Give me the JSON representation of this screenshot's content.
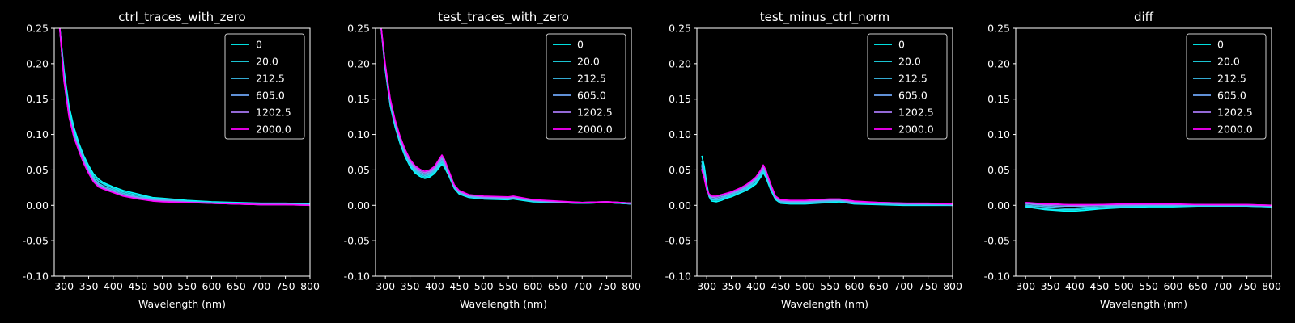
{
  "figure": {
    "background": "#000000",
    "foreground": "#ffffff"
  },
  "legend": {
    "entries": [
      "0",
      "20.0",
      "212.5",
      "605.0",
      "1202.5",
      "2000.0"
    ],
    "colors": [
      "#00ffff",
      "#1ee1f0",
      "#3cc3f0",
      "#6ea5f5",
      "#a878f5",
      "#ff00ff"
    ],
    "placement": "top-right"
  },
  "axes": {
    "xlabel": "Wavelength (nm)",
    "xlim": [
      280,
      800
    ],
    "ylim": [
      -0.1,
      0.25
    ],
    "xticks": [
      "300",
      "350",
      "400",
      "450",
      "500",
      "550",
      "600",
      "650",
      "700",
      "750",
      "800"
    ],
    "yticks": [
      "-0.10",
      "-0.05",
      "0.00",
      "0.05",
      "0.10",
      "0.15",
      "0.20",
      "0.25"
    ]
  },
  "chart_data": [
    {
      "type": "line",
      "title": "ctrl_traces_with_zero",
      "xlabel": "Wavelength (nm)",
      "xlim": [
        280,
        800
      ],
      "ylim": [
        -0.1,
        0.25
      ],
      "legend": "top-right",
      "x": [
        290,
        300,
        310,
        320,
        330,
        340,
        350,
        360,
        370,
        380,
        400,
        420,
        450,
        480,
        500,
        550,
        600,
        650,
        700,
        750,
        800
      ],
      "series": [
        {
          "name": "0",
          "values": [
            0.26,
            0.19,
            0.14,
            0.11,
            0.088,
            0.07,
            0.056,
            0.044,
            0.037,
            0.032,
            0.026,
            0.021,
            0.016,
            0.011,
            0.01,
            0.007,
            0.005,
            0.004,
            0.003,
            0.003,
            0.002
          ]
        },
        {
          "name": "20.0",
          "values": [
            0.26,
            0.185,
            0.135,
            0.105,
            0.085,
            0.067,
            0.053,
            0.041,
            0.034,
            0.03,
            0.024,
            0.019,
            0.014,
            0.01,
            0.009,
            0.006,
            0.004,
            0.003,
            0.002,
            0.002,
            0.001
          ]
        },
        {
          "name": "212.5",
          "values": [
            0.26,
            0.18,
            0.13,
            0.1,
            0.082,
            0.064,
            0.05,
            0.038,
            0.031,
            0.027,
            0.022,
            0.017,
            0.012,
            0.009,
            0.008,
            0.005,
            0.004,
            0.003,
            0.002,
            0.002,
            0.001
          ]
        },
        {
          "name": "605.0",
          "values": [
            0.26,
            0.178,
            0.128,
            0.098,
            0.08,
            0.062,
            0.048,
            0.036,
            0.029,
            0.025,
            0.02,
            0.015,
            0.011,
            0.008,
            0.007,
            0.005,
            0.003,
            0.002,
            0.001,
            0.001,
            0.001
          ]
        },
        {
          "name": "1202.5",
          "values": [
            0.26,
            0.176,
            0.126,
            0.097,
            0.078,
            0.06,
            0.046,
            0.034,
            0.027,
            0.024,
            0.019,
            0.014,
            0.01,
            0.007,
            0.006,
            0.004,
            0.003,
            0.002,
            0.001,
            0.001,
            0.0
          ]
        },
        {
          "name": "2000.0",
          "values": [
            0.26,
            0.175,
            0.125,
            0.096,
            0.077,
            0.059,
            0.045,
            0.033,
            0.026,
            0.023,
            0.018,
            0.013,
            0.009,
            0.006,
            0.005,
            0.004,
            0.003,
            0.002,
            0.001,
            0.001,
            0.0
          ]
        }
      ]
    },
    {
      "type": "line",
      "title": "test_traces_with_zero",
      "xlabel": "Wavelength (nm)",
      "xlim": [
        280,
        800
      ],
      "ylim": [
        -0.1,
        0.25
      ],
      "legend": "top-right",
      "x": [
        290,
        300,
        310,
        320,
        330,
        340,
        350,
        360,
        370,
        380,
        390,
        400,
        410,
        415,
        420,
        430,
        440,
        450,
        470,
        500,
        550,
        560,
        600,
        650,
        700,
        750,
        800
      ],
      "series": [
        {
          "name": "0",
          "values": [
            0.26,
            0.19,
            0.14,
            0.11,
            0.087,
            0.069,
            0.055,
            0.046,
            0.041,
            0.038,
            0.04,
            0.045,
            0.054,
            0.058,
            0.054,
            0.04,
            0.024,
            0.016,
            0.011,
            0.009,
            0.008,
            0.009,
            0.005,
            0.004,
            0.003,
            0.004,
            0.002
          ]
        },
        {
          "name": "20.0",
          "values": [
            0.26,
            0.19,
            0.142,
            0.112,
            0.089,
            0.071,
            0.057,
            0.048,
            0.043,
            0.04,
            0.042,
            0.047,
            0.056,
            0.061,
            0.056,
            0.041,
            0.025,
            0.017,
            0.012,
            0.01,
            0.009,
            0.01,
            0.006,
            0.004,
            0.003,
            0.004,
            0.002
          ]
        },
        {
          "name": "212.5",
          "values": [
            0.26,
            0.192,
            0.144,
            0.114,
            0.091,
            0.073,
            0.059,
            0.05,
            0.045,
            0.042,
            0.044,
            0.049,
            0.058,
            0.063,
            0.058,
            0.043,
            0.026,
            0.018,
            0.012,
            0.01,
            0.009,
            0.01,
            0.006,
            0.004,
            0.003,
            0.004,
            0.002
          ]
        },
        {
          "name": "605.0",
          "values": [
            0.26,
            0.194,
            0.146,
            0.116,
            0.093,
            0.075,
            0.061,
            0.052,
            0.047,
            0.044,
            0.046,
            0.051,
            0.061,
            0.066,
            0.06,
            0.044,
            0.027,
            0.019,
            0.013,
            0.011,
            0.01,
            0.011,
            0.007,
            0.005,
            0.004,
            0.005,
            0.003
          ]
        },
        {
          "name": "1202.5",
          "values": [
            0.26,
            0.196,
            0.148,
            0.118,
            0.095,
            0.077,
            0.063,
            0.054,
            0.049,
            0.046,
            0.048,
            0.053,
            0.064,
            0.069,
            0.063,
            0.046,
            0.028,
            0.02,
            0.014,
            0.012,
            0.011,
            0.012,
            0.007,
            0.005,
            0.004,
            0.005,
            0.003
          ]
        },
        {
          "name": "2000.0",
          "values": [
            0.26,
            0.198,
            0.15,
            0.12,
            0.097,
            0.079,
            0.065,
            0.056,
            0.051,
            0.048,
            0.05,
            0.055,
            0.066,
            0.071,
            0.065,
            0.047,
            0.029,
            0.021,
            0.015,
            0.013,
            0.012,
            0.013,
            0.008,
            0.006,
            0.004,
            0.005,
            0.003
          ]
        }
      ]
    },
    {
      "type": "line",
      "title": "test_minus_ctrl_norm",
      "xlabel": "Wavelength (nm)",
      "xlim": [
        280,
        800
      ],
      "ylim": [
        -0.1,
        0.25
      ],
      "legend": "top-right",
      "x": [
        290,
        295,
        300,
        305,
        310,
        320,
        330,
        340,
        350,
        360,
        370,
        380,
        390,
        400,
        410,
        415,
        420,
        430,
        440,
        450,
        470,
        500,
        550,
        570,
        600,
        650,
        700,
        750,
        800
      ],
      "series": [
        {
          "name": "0",
          "values": [
            0.07,
            0.055,
            0.03,
            0.012,
            0.006,
            0.005,
            0.007,
            0.01,
            0.012,
            0.015,
            0.018,
            0.021,
            0.025,
            0.03,
            0.04,
            0.046,
            0.04,
            0.022,
            0.008,
            0.003,
            0.002,
            0.002,
            0.004,
            0.005,
            0.002,
            0.001,
            0.0,
            0.0,
            0.0
          ]
        },
        {
          "name": "20.0",
          "values": [
            0.062,
            0.048,
            0.026,
            0.012,
            0.008,
            0.007,
            0.009,
            0.011,
            0.014,
            0.016,
            0.019,
            0.022,
            0.027,
            0.032,
            0.042,
            0.048,
            0.042,
            0.024,
            0.009,
            0.004,
            0.003,
            0.003,
            0.005,
            0.006,
            0.003,
            0.002,
            0.001,
            0.001,
            0.0
          ]
        },
        {
          "name": "212.5",
          "values": [
            0.058,
            0.045,
            0.025,
            0.013,
            0.009,
            0.008,
            0.01,
            0.013,
            0.015,
            0.018,
            0.021,
            0.024,
            0.029,
            0.035,
            0.045,
            0.051,
            0.045,
            0.026,
            0.01,
            0.005,
            0.004,
            0.004,
            0.006,
            0.007,
            0.003,
            0.002,
            0.001,
            0.001,
            0.001
          ]
        },
        {
          "name": "605.0",
          "values": [
            0.055,
            0.042,
            0.024,
            0.014,
            0.011,
            0.01,
            0.012,
            0.014,
            0.017,
            0.019,
            0.022,
            0.026,
            0.031,
            0.037,
            0.047,
            0.053,
            0.047,
            0.027,
            0.011,
            0.006,
            0.005,
            0.005,
            0.007,
            0.007,
            0.004,
            0.003,
            0.002,
            0.002,
            0.001
          ]
        },
        {
          "name": "1202.5",
          "values": [
            0.052,
            0.04,
            0.023,
            0.015,
            0.012,
            0.012,
            0.014,
            0.016,
            0.018,
            0.021,
            0.024,
            0.028,
            0.033,
            0.039,
            0.049,
            0.055,
            0.049,
            0.029,
            0.012,
            0.007,
            0.006,
            0.006,
            0.008,
            0.008,
            0.005,
            0.004,
            0.003,
            0.002,
            0.002
          ]
        },
        {
          "name": "2000.0",
          "values": [
            0.05,
            0.038,
            0.022,
            0.016,
            0.013,
            0.013,
            0.015,
            0.017,
            0.019,
            0.022,
            0.025,
            0.029,
            0.034,
            0.04,
            0.05,
            0.057,
            0.05,
            0.03,
            0.013,
            0.008,
            0.007,
            0.007,
            0.009,
            0.009,
            0.006,
            0.004,
            0.003,
            0.003,
            0.002
          ]
        }
      ]
    },
    {
      "type": "line",
      "title": "diff",
      "xlabel": "Wavelength (nm)",
      "xlim": [
        280,
        800
      ],
      "ylim": [
        -0.1,
        0.25
      ],
      "legend": "top-right",
      "x": [
        300,
        320,
        340,
        360,
        380,
        400,
        420,
        450,
        500,
        550,
        600,
        650,
        700,
        750,
        800
      ],
      "series": [
        {
          "name": "0",
          "values": [
            -0.002,
            -0.004,
            -0.006,
            -0.007,
            -0.008,
            -0.008,
            -0.007,
            -0.005,
            -0.003,
            -0.002,
            -0.002,
            -0.001,
            -0.001,
            -0.001,
            -0.002
          ]
        },
        {
          "name": "20.0",
          "values": [
            -0.001,
            -0.003,
            -0.005,
            -0.006,
            -0.006,
            -0.006,
            -0.005,
            -0.004,
            -0.002,
            -0.001,
            -0.001,
            -0.001,
            -0.001,
            -0.001,
            -0.002
          ]
        },
        {
          "name": "212.5",
          "values": [
            0.0,
            -0.001,
            -0.002,
            -0.003,
            -0.004,
            -0.004,
            -0.003,
            -0.002,
            -0.001,
            0.0,
            0.0,
            0.0,
            0.0,
            0.0,
            -0.001
          ]
        },
        {
          "name": "605.0",
          "values": [
            0.002,
            0.001,
            0.0,
            -0.001,
            -0.001,
            -0.001,
            -0.001,
            0.0,
            0.0,
            0.001,
            0.001,
            0.001,
            0.0,
            0.0,
            -0.001
          ]
        },
        {
          "name": "1202.5",
          "values": [
            0.003,
            0.002,
            0.001,
            0.001,
            0.001,
            0.0,
            0.0,
            0.001,
            0.001,
            0.001,
            0.001,
            0.001,
            0.001,
            0.001,
            0.0
          ]
        },
        {
          "name": "2000.0",
          "values": [
            0.004,
            0.003,
            0.002,
            0.002,
            0.001,
            0.001,
            0.001,
            0.001,
            0.002,
            0.002,
            0.002,
            0.001,
            0.001,
            0.001,
            0.0
          ]
        }
      ]
    }
  ]
}
